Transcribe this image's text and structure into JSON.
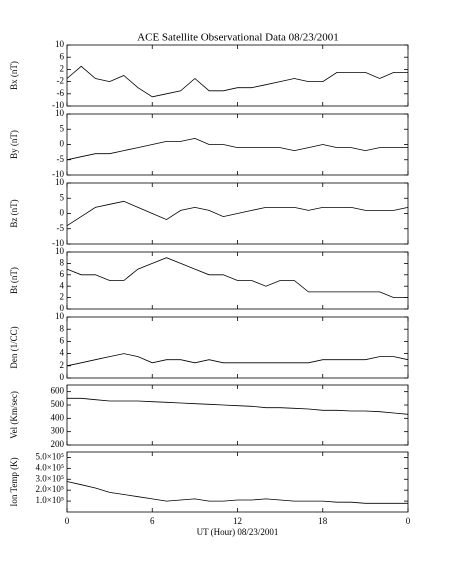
{
  "title": "ACE Satellite Observational Data   08/23/2001",
  "chart_data": [
    {
      "type": "line",
      "ylabel": "Bx (nT)",
      "ylim": [
        -10,
        10
      ],
      "yticks": [
        -10,
        -6,
        -2,
        2,
        6,
        10
      ],
      "x": [
        0,
        1,
        2,
        3,
        4,
        5,
        6,
        7,
        8,
        9,
        10,
        11,
        12,
        13,
        14,
        15,
        16,
        17,
        18,
        19,
        20,
        21,
        22,
        23,
        24
      ],
      "values": [
        -1,
        3,
        -1,
        -2,
        0,
        -4,
        -7,
        -6,
        -5,
        -1,
        -5,
        -5,
        -4,
        -4,
        -3,
        -2,
        -1,
        -2,
        -2,
        1,
        1,
        1,
        -1,
        1,
        1
      ],
      "color": "#000000"
    },
    {
      "type": "line",
      "ylabel": "By (nT)",
      "ylim": [
        -10,
        10
      ],
      "yticks": [
        -10,
        -5,
        0,
        5,
        10
      ],
      "x": [
        0,
        1,
        2,
        3,
        4,
        5,
        6,
        7,
        8,
        9,
        10,
        11,
        12,
        13,
        14,
        15,
        16,
        17,
        18,
        19,
        20,
        21,
        22,
        23,
        24
      ],
      "values": [
        -5,
        -4,
        -3,
        -3,
        -2,
        -1,
        0,
        1,
        1,
        2,
        0,
        0,
        -1,
        -1,
        -1,
        -1,
        -2,
        -1,
        0,
        -1,
        -1,
        -2,
        -1,
        -1,
        -1
      ],
      "color": "#000000"
    },
    {
      "type": "line",
      "ylabel": "Bz (nT)",
      "ylim": [
        -10,
        10
      ],
      "yticks": [
        -10,
        -5,
        0,
        5,
        10
      ],
      "x": [
        0,
        1,
        2,
        3,
        4,
        5,
        6,
        7,
        8,
        9,
        10,
        11,
        12,
        13,
        14,
        15,
        16,
        17,
        18,
        19,
        20,
        21,
        22,
        23,
        24
      ],
      "values": [
        -4,
        -1,
        2,
        3,
        4,
        2,
        0,
        -2,
        1,
        2,
        1,
        -1,
        0,
        1,
        2,
        2,
        2,
        1,
        2,
        2,
        2,
        1,
        1,
        1,
        2
      ],
      "color": "#000000"
    },
    {
      "type": "line",
      "ylabel": "Bt (nT)",
      "ylim": [
        0,
        10
      ],
      "yticks": [
        0,
        2,
        4,
        6,
        8,
        10
      ],
      "x": [
        0,
        1,
        2,
        3,
        4,
        5,
        6,
        7,
        8,
        9,
        10,
        11,
        12,
        13,
        14,
        15,
        16,
        17,
        18,
        19,
        20,
        21,
        22,
        23,
        24
      ],
      "values": [
        7,
        6,
        6,
        5,
        5,
        7,
        8,
        9,
        8,
        7,
        6,
        6,
        5,
        5,
        4,
        5,
        5,
        3,
        3,
        3,
        3,
        3,
        3,
        2,
        2
      ],
      "color": "#000000"
    },
    {
      "type": "line",
      "ylabel": "Den (1/CC)",
      "ylim": [
        0,
        10
      ],
      "yticks": [
        0,
        2,
        4,
        6,
        8,
        10
      ],
      "x": [
        0,
        1,
        2,
        3,
        4,
        5,
        6,
        7,
        8,
        9,
        10,
        11,
        12,
        13,
        14,
        15,
        16,
        17,
        18,
        19,
        20,
        21,
        22,
        23,
        24
      ],
      "values": [
        2,
        2.5,
        3,
        3.5,
        4,
        3.5,
        2.5,
        3,
        3,
        2.5,
        3,
        2.5,
        2.5,
        2.5,
        2.5,
        2.5,
        2.5,
        2.5,
        3,
        3,
        3,
        3,
        3.5,
        3.5,
        3
      ],
      "color": "#000000"
    },
    {
      "type": "line",
      "ylabel": "Vel (Km/sec)",
      "ylim": [
        200,
        650
      ],
      "yticks": [
        200,
        300,
        400,
        500,
        600
      ],
      "x": [
        0,
        1,
        2,
        3,
        4,
        5,
        6,
        7,
        8,
        9,
        10,
        11,
        12,
        13,
        14,
        15,
        16,
        17,
        18,
        19,
        20,
        21,
        22,
        23,
        24
      ],
      "values": [
        550,
        550,
        540,
        530,
        530,
        530,
        525,
        520,
        515,
        510,
        505,
        500,
        495,
        490,
        480,
        480,
        475,
        470,
        460,
        460,
        455,
        455,
        450,
        440,
        430
      ],
      "color": "#000000"
    },
    {
      "type": "line",
      "ylabel": "Ion Temp (K)",
      "ylim": [
        0,
        550000
      ],
      "yticks": [
        {
          "value": 100000,
          "label": "1.0×10⁵"
        },
        {
          "value": 200000,
          "label": "2.0×10⁵"
        },
        {
          "value": 300000,
          "label": "3.0×10⁵"
        },
        {
          "value": 400000,
          "label": "4.0×10⁵"
        },
        {
          "value": 500000,
          "label": "5.0×10⁵"
        }
      ],
      "x": [
        0,
        1,
        2,
        3,
        4,
        5,
        6,
        7,
        8,
        9,
        10,
        11,
        12,
        13,
        14,
        15,
        16,
        17,
        18,
        19,
        20,
        21,
        22,
        23,
        24
      ],
      "values": [
        280000,
        250000,
        220000,
        180000,
        160000,
        140000,
        120000,
        100000,
        110000,
        120000,
        100000,
        100000,
        110000,
        110000,
        120000,
        110000,
        100000,
        100000,
        100000,
        90000,
        90000,
        80000,
        80000,
        80000,
        80000
      ],
      "color": "#000000",
      "xlabel": "UT (Hour)   08/23/2001",
      "xlim": [
        0,
        24
      ],
      "xticks": [
        0,
        6,
        12,
        18,
        {
          "value": 24,
          "label": "0"
        }
      ]
    }
  ]
}
